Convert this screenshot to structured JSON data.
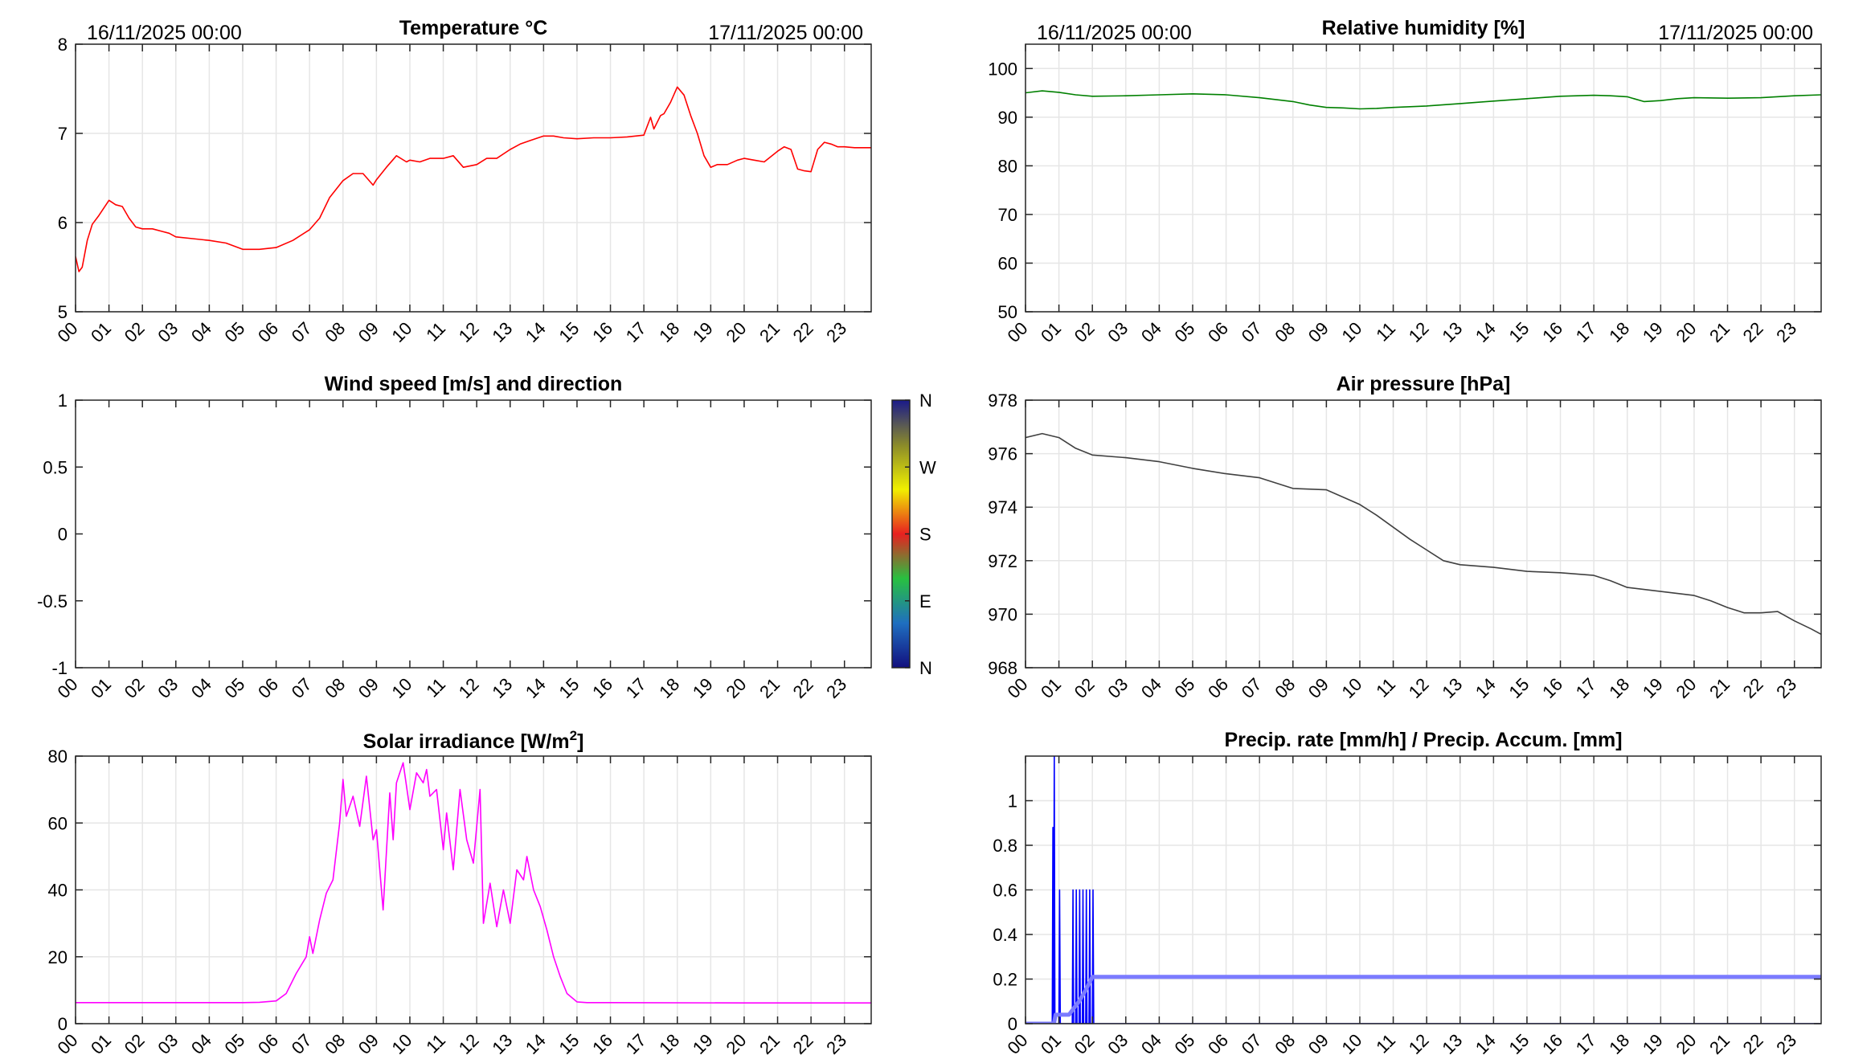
{
  "chart_data": [
    {
      "id": "temperature",
      "type": "line",
      "title": "Temperature °C",
      "date_start": "16/11/2025 00:00",
      "date_end": "17/11/2025 00:00",
      "x_ticks": [
        "00",
        "01",
        "02",
        "03",
        "04",
        "05",
        "06",
        "07",
        "08",
        "09",
        "10",
        "11",
        "12",
        "13",
        "14",
        "15",
        "16",
        "17",
        "18",
        "19",
        "20",
        "21",
        "22",
        "23"
      ],
      "xlim": [
        0,
        23.8
      ],
      "ylim": [
        5,
        8
      ],
      "y_ticks": [
        "5",
        "6",
        "7",
        "8"
      ],
      "grid": true,
      "series": [
        {
          "color": "#ff0000",
          "x": [
            0,
            0.1,
            0.2,
            0.35,
            0.5,
            0.7,
            1.0,
            1.2,
            1.4,
            1.6,
            1.8,
            2.0,
            2.3,
            2.6,
            2.8,
            3.0,
            3.5,
            4.0,
            4.5,
            5.0,
            5.5,
            6.0,
            6.5,
            7.0,
            7.3,
            7.6,
            8.0,
            8.3,
            8.6,
            8.9,
            9.0,
            9.3,
            9.6,
            9.9,
            10.0,
            10.3,
            10.6,
            11.0,
            11.3,
            11.6,
            12.0,
            12.3,
            12.6,
            13.0,
            13.3,
            13.6,
            14.0,
            14.3,
            14.6,
            15.0,
            15.5,
            16.0,
            16.5,
            17.0,
            17.2,
            17.3,
            17.5,
            17.6,
            17.8,
            18.0,
            18.2,
            18.4,
            18.6,
            18.8,
            19.0,
            19.2,
            19.5,
            19.8,
            20.0,
            20.3,
            20.6,
            21.0,
            21.2,
            21.4,
            21.6,
            21.8,
            22.0,
            22.2,
            22.4,
            22.6,
            22.8,
            23.0,
            23.3,
            23.6,
            23.8
          ],
          "values": [
            5.62,
            5.45,
            5.5,
            5.8,
            5.98,
            6.08,
            6.25,
            6.2,
            6.18,
            6.05,
            5.95,
            5.93,
            5.93,
            5.9,
            5.88,
            5.84,
            5.82,
            5.8,
            5.77,
            5.7,
            5.7,
            5.72,
            5.8,
            5.92,
            6.05,
            6.28,
            6.47,
            6.55,
            6.55,
            6.42,
            6.48,
            6.62,
            6.75,
            6.68,
            6.7,
            6.68,
            6.72,
            6.72,
            6.75,
            6.62,
            6.65,
            6.72,
            6.72,
            6.82,
            6.88,
            6.92,
            6.97,
            6.97,
            6.95,
            6.94,
            6.95,
            6.95,
            6.96,
            6.98,
            7.18,
            7.05,
            7.2,
            7.22,
            7.35,
            7.52,
            7.43,
            7.2,
            7.0,
            6.75,
            6.62,
            6.65,
            6.65,
            6.7,
            6.72,
            6.7,
            6.68,
            6.8,
            6.85,
            6.82,
            6.6,
            6.58,
            6.57,
            6.82,
            6.9,
            6.88,
            6.85,
            6.85,
            6.84,
            6.84,
            6.84
          ]
        }
      ]
    },
    {
      "id": "humidity",
      "type": "line",
      "title": "Relative humidity [%]",
      "date_start": "16/11/2025 00:00",
      "date_end": "17/11/2025 00:00",
      "x_ticks": [
        "00",
        "01",
        "02",
        "03",
        "04",
        "05",
        "06",
        "07",
        "08",
        "09",
        "10",
        "11",
        "12",
        "13",
        "14",
        "15",
        "16",
        "17",
        "18",
        "19",
        "20",
        "21",
        "22",
        "23"
      ],
      "xlim": [
        0,
        23.8
      ],
      "ylim": [
        50,
        105
      ],
      "y_ticks": [
        "50",
        "60",
        "70",
        "80",
        "90",
        "100"
      ],
      "grid": true,
      "series": [
        {
          "color": "#008000",
          "x": [
            0,
            0.5,
            1.0,
            1.5,
            2.0,
            3.0,
            4.0,
            5.0,
            6.0,
            7.0,
            8.0,
            8.5,
            9.0,
            9.5,
            10.0,
            10.5,
            11.0,
            12.0,
            13.0,
            14.0,
            15.0,
            16.0,
            17.0,
            17.5,
            18.0,
            18.5,
            19.0,
            19.5,
            20.0,
            21.0,
            22.0,
            23.0,
            23.8
          ],
          "values": [
            95,
            95.4,
            95.1,
            94.6,
            94.3,
            94.4,
            94.6,
            94.8,
            94.6,
            94.0,
            93.2,
            92.5,
            92.0,
            91.9,
            91.7,
            91.8,
            92.0,
            92.3,
            92.8,
            93.3,
            93.8,
            94.3,
            94.5,
            94.4,
            94.2,
            93.2,
            93.4,
            93.8,
            94.0,
            93.9,
            94.0,
            94.4,
            94.6
          ]
        }
      ]
    },
    {
      "id": "wind",
      "type": "scatter",
      "title": "Wind speed [m/s] and direction",
      "x_ticks": [
        "00",
        "01",
        "02",
        "03",
        "04",
        "05",
        "06",
        "07",
        "08",
        "09",
        "10",
        "11",
        "12",
        "13",
        "14",
        "15",
        "16",
        "17",
        "18",
        "19",
        "20",
        "21",
        "22",
        "23"
      ],
      "xlim": [
        0,
        23.8
      ],
      "ylim": [
        -1,
        1
      ],
      "y_ticks": [
        "-1",
        "-0.5",
        "0",
        "0.5",
        "1"
      ],
      "grid": false,
      "colorbar": {
        "labels": [
          "N",
          "W",
          "S",
          "E",
          "N"
        ],
        "colors": [
          "#120f7e",
          "#1f6fc0",
          "#28c040",
          "#e82020",
          "#f0f000",
          "#8a8a2a",
          "#1a1a8a"
        ]
      },
      "series": []
    },
    {
      "id": "pressure",
      "type": "line",
      "title": "Air pressure [hPa]",
      "x_ticks": [
        "00",
        "01",
        "02",
        "03",
        "04",
        "05",
        "06",
        "07",
        "08",
        "09",
        "10",
        "11",
        "12",
        "13",
        "14",
        "15",
        "16",
        "17",
        "18",
        "19",
        "20",
        "21",
        "22",
        "23"
      ],
      "xlim": [
        0,
        23.8
      ],
      "ylim": [
        968,
        978
      ],
      "y_ticks": [
        "968",
        "970",
        "972",
        "974",
        "976",
        "978"
      ],
      "grid": true,
      "series": [
        {
          "color": "#404040",
          "x": [
            0,
            0.5,
            1.0,
            1.5,
            2.0,
            3.0,
            4.0,
            5.0,
            6.0,
            7.0,
            8.0,
            9.0,
            10.0,
            10.5,
            11.0,
            11.5,
            12.0,
            12.5,
            13.0,
            14.0,
            15.0,
            16.0,
            17.0,
            17.5,
            18.0,
            19.0,
            20.0,
            20.5,
            21.0,
            21.5,
            22.0,
            22.5,
            23.0,
            23.5,
            23.8
          ],
          "values": [
            976.6,
            976.75,
            976.6,
            976.2,
            975.95,
            975.85,
            975.7,
            975.45,
            975.25,
            975.1,
            974.7,
            974.65,
            974.1,
            973.7,
            973.25,
            972.8,
            972.4,
            972.0,
            971.85,
            971.75,
            971.6,
            971.55,
            971.45,
            971.25,
            971.0,
            970.85,
            970.7,
            970.5,
            970.25,
            970.05,
            970.05,
            970.1,
            969.75,
            969.45,
            969.25
          ]
        }
      ]
    },
    {
      "id": "solar",
      "type": "line",
      "title": "Solar irradiance [W/m2]",
      "x_ticks": [
        "00",
        "01",
        "02",
        "03",
        "04",
        "05",
        "06",
        "07",
        "08",
        "09",
        "10",
        "11",
        "12",
        "13",
        "14",
        "15",
        "16",
        "17",
        "18",
        "19",
        "20",
        "21",
        "22",
        "23"
      ],
      "xlim": [
        0,
        23.8
      ],
      "ylim": [
        0,
        80
      ],
      "y_ticks": [
        "0",
        "20",
        "40",
        "60",
        "80"
      ],
      "grid": true,
      "series": [
        {
          "color": "#ff00ff",
          "x": [
            0,
            3,
            5,
            5.5,
            6.0,
            6.3,
            6.6,
            6.9,
            7.0,
            7.1,
            7.3,
            7.5,
            7.7,
            7.9,
            8.0,
            8.1,
            8.3,
            8.5,
            8.7,
            8.9,
            9.0,
            9.2,
            9.4,
            9.5,
            9.6,
            9.8,
            10.0,
            10.2,
            10.4,
            10.5,
            10.6,
            10.8,
            11.0,
            11.1,
            11.3,
            11.5,
            11.7,
            11.9,
            12.1,
            12.2,
            12.4,
            12.6,
            12.8,
            13.0,
            13.2,
            13.4,
            13.5,
            13.7,
            13.9,
            14.1,
            14.3,
            14.5,
            14.7,
            15.0,
            15.3,
            16,
            20,
            23.8
          ],
          "values": [
            6.3,
            6.3,
            6.3,
            6.4,
            6.8,
            9,
            15,
            20,
            26,
            21,
            31,
            39,
            43,
            60,
            73,
            62,
            68,
            59,
            74,
            55,
            58,
            34,
            69,
            55,
            72,
            78,
            64,
            75,
            72,
            76,
            68,
            70,
            52,
            63,
            46,
            70,
            55,
            48,
            70,
            30,
            42,
            29,
            40,
            30,
            46,
            43,
            50,
            40,
            35,
            28,
            20,
            14,
            9,
            6.5,
            6.3,
            6.3,
            6.2,
            6.2
          ]
        }
      ]
    },
    {
      "id": "precip",
      "type": "line",
      "title": "Precip. rate [mm/h] / Precip. Accum. [mm]",
      "x_ticks": [
        "00",
        "01",
        "02",
        "03",
        "04",
        "05",
        "06",
        "07",
        "08",
        "09",
        "10",
        "11",
        "12",
        "13",
        "14",
        "15",
        "16",
        "17",
        "18",
        "19",
        "20",
        "21",
        "22",
        "23"
      ],
      "xlim": [
        0,
        23.8
      ],
      "ylim": [
        0,
        1.2
      ],
      "y_ticks": [
        "0",
        "0.2",
        "0.4",
        "0.6",
        "0.8",
        "1"
      ],
      "grid": true,
      "series": [
        {
          "color": "#0000ff",
          "x": [
            0,
            0.8,
            0.82,
            0.84,
            0.86,
            0.88,
            0.9,
            0.92,
            0.94,
            0.96,
            1.0,
            1.02,
            1.04,
            1.06,
            1.08,
            1.3,
            1.4,
            1.42,
            1.44,
            1.46,
            1.5,
            1.52,
            1.54,
            1.56,
            1.6,
            1.62,
            1.64,
            1.66,
            1.7,
            1.72,
            1.74,
            1.76,
            1.8,
            1.82,
            1.84,
            1.86,
            1.9,
            1.92,
            1.94,
            1.96,
            2.0,
            2.02,
            2.04,
            2.1,
            23.8
          ],
          "values": [
            0,
            0,
            0.88,
            0,
            1.2,
            0,
            0,
            0,
            0,
            0,
            0,
            0.6,
            0,
            0,
            0,
            0,
            0,
            0.6,
            0,
            0,
            0,
            0.6,
            0,
            0,
            0,
            0.6,
            0,
            0,
            0,
            0.6,
            0,
            0,
            0,
            0.6,
            0,
            0,
            0,
            0.6,
            0,
            0,
            0,
            0.6,
            0,
            0,
            0
          ]
        },
        {
          "color": "#7b7bff",
          "x": [
            0,
            0.85,
            0.9,
            1.3,
            1.4,
            1.6,
            1.8,
            2.0,
            2.1,
            23.8
          ],
          "values": [
            0,
            0,
            0.04,
            0.04,
            0.06,
            0.1,
            0.15,
            0.21,
            0.21,
            0.21
          ]
        }
      ]
    }
  ]
}
